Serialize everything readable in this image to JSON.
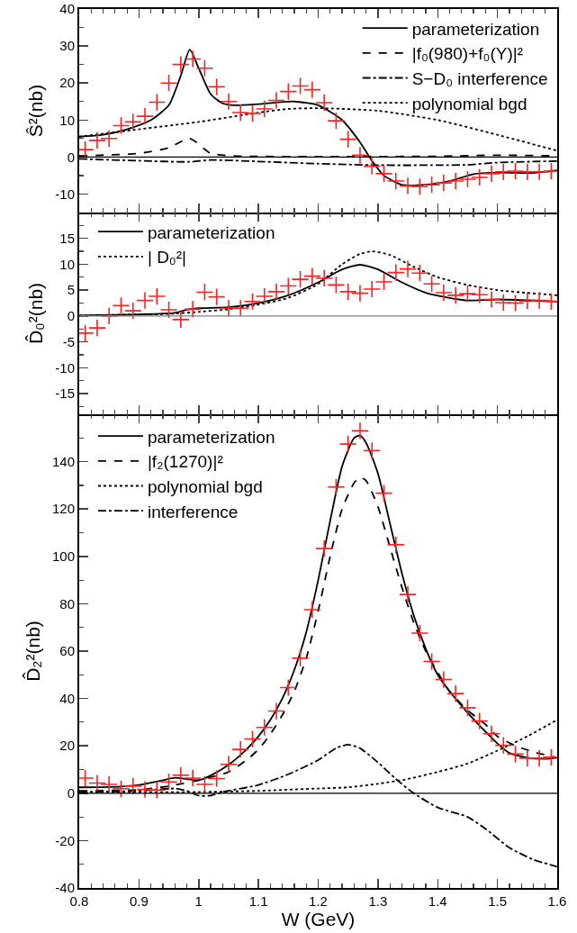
{
  "chart_data": [
    {
      "type": "line",
      "ylabel": "Ŝ²(nb)",
      "xlim": [
        0.8,
        1.6
      ],
      "xticks": [
        0.8,
        0.9,
        1,
        1.1,
        1.2,
        1.3,
        1.4,
        1.5,
        1.6
      ],
      "ylim": [
        -15,
        40
      ],
      "yticks": [
        -10,
        0,
        10,
        20,
        30,
        40
      ],
      "tick_labels": "y",
      "legend": "top right",
      "grid": false,
      "x": [
        0.81,
        0.83,
        0.85,
        0.87,
        0.89,
        0.91,
        0.93,
        0.95,
        0.97,
        0.99,
        1.01,
        1.03,
        1.05,
        1.07,
        1.09,
        1.11,
        1.13,
        1.15,
        1.17,
        1.19,
        1.21,
        1.23,
        1.25,
        1.27,
        1.29,
        1.31,
        1.33,
        1.35,
        1.37,
        1.39,
        1.41,
        1.43,
        1.45,
        1.47,
        1.49,
        1.51,
        1.53,
        1.55,
        1.57,
        1.59
      ],
      "ref_lines": [
        {
          "axis": "y",
          "value": 0,
          "color": "#000000"
        }
      ],
      "series": [
        {
          "type": "scatter",
          "marker": "cross",
          "color": "#ff2020",
          "values": [
            2,
            4.5,
            5,
            8.5,
            9.5,
            11,
            14.8,
            20,
            25,
            26.5,
            24,
            19,
            15,
            12,
            11.8,
            13,
            15.3,
            17.7,
            19.2,
            18.2,
            14.7,
            9.8,
            4.8,
            0.5,
            -2.5,
            -4.5,
            -6.5,
            -7.8,
            -8,
            -7.5,
            -7,
            -6.5,
            -6,
            -5.5,
            -4.5,
            -4,
            -3.8,
            -4,
            -4,
            -3.8
          ]
        },
        {
          "name": "parameterization",
          "line_style": "solid",
          "color": "#000000",
          "x": [
            0.8,
            0.84,
            0.88,
            0.92,
            0.95,
            0.97,
            0.985,
            1.0,
            1.02,
            1.04,
            1.06,
            1.1,
            1.16,
            1.2,
            1.24,
            1.27,
            1.29,
            1.31,
            1.34,
            1.38,
            1.42,
            1.46,
            1.5,
            1.56,
            1.6
          ],
          "values": [
            5.5,
            6,
            7.5,
            10,
            14,
            22,
            29,
            24,
            17,
            14.5,
            14,
            14.3,
            15,
            14,
            10,
            4,
            -1,
            -5,
            -7.5,
            -7.5,
            -6.5,
            -4.6,
            -4.2,
            -4.3,
            -3.6
          ]
        },
        {
          "name": "|f₀(980)+f₀(Y)|²",
          "line_style": "dashed",
          "color": "#000000",
          "x": [
            0.8,
            0.9,
            0.95,
            0.985,
            1.02,
            1.06,
            1.2,
            1.4,
            1.5,
            1.6
          ],
          "values": [
            0.3,
            1,
            2.5,
            5,
            1,
            0.3,
            0.1,
            0.2,
            0.5,
            0.3
          ]
        },
        {
          "name": "S−D₀ interference",
          "line_style": "dashdot",
          "color": "#000000",
          "x": [
            0.8,
            0.9,
            0.985,
            1.02,
            1.1,
            1.2,
            1.3,
            1.4,
            1.45,
            1.5,
            1.6
          ],
          "values": [
            -0.5,
            -1,
            -1.3,
            -0.8,
            -1.2,
            -1.8,
            -2.2,
            -2.2,
            -2.1,
            -1.5,
            -1.1
          ]
        },
        {
          "name": "polynomial bgd",
          "line_style": "dotted",
          "color": "#000000",
          "x": [
            0.8,
            0.9,
            1.0,
            1.1,
            1.15,
            1.2,
            1.3,
            1.4,
            1.5,
            1.6
          ],
          "values": [
            5.5,
            7.5,
            9.5,
            12,
            13,
            13.2,
            12.5,
            10,
            6,
            1.7
          ]
        }
      ]
    },
    {
      "type": "line",
      "ylabel": "D̂₀²(nb)",
      "xlim": [
        0.8,
        1.6
      ],
      "xticks": [
        0.8,
        0.9,
        1,
        1.1,
        1.2,
        1.3,
        1.4,
        1.5,
        1.6
      ],
      "ylim": [
        -19,
        20
      ],
      "yticks": [
        -15,
        -10,
        -5,
        0,
        5,
        10,
        15
      ],
      "tick_labels": "y",
      "legend": "top left",
      "grid": false,
      "x": [
        0.81,
        0.83,
        0.85,
        0.87,
        0.89,
        0.91,
        0.93,
        0.95,
        0.97,
        0.99,
        1.01,
        1.03,
        1.05,
        1.07,
        1.09,
        1.11,
        1.13,
        1.15,
        1.17,
        1.19,
        1.21,
        1.23,
        1.25,
        1.27,
        1.29,
        1.31,
        1.33,
        1.35,
        1.37,
        1.39,
        1.41,
        1.43,
        1.45,
        1.47,
        1.49,
        1.51,
        1.53,
        1.55,
        1.57,
        1.59
      ],
      "ref_lines": [
        {
          "axis": "y",
          "value": 0,
          "color": "#808080"
        }
      ],
      "series": [
        {
          "type": "scatter",
          "marker": "cross",
          "color": "#ff2020",
          "values": [
            -3.3,
            -2.3,
            0,
            2,
            1,
            3,
            3.8,
            1.2,
            -0.7,
            1.3,
            4.6,
            3.7,
            1.5,
            1.5,
            2.8,
            3.8,
            4.7,
            5.8,
            7.1,
            7.7,
            7.3,
            6,
            4.7,
            4.4,
            5.2,
            6.6,
            8.4,
            9.1,
            8.3,
            6.2,
            4.5,
            4,
            4.3,
            4.1,
            3.2,
            2.6,
            2.5,
            2.9,
            3,
            2.8
          ]
        },
        {
          "name": "parameterization",
          "line_style": "solid",
          "color": "#000000",
          "x": [
            0.8,
            0.9,
            0.96,
            0.98,
            1.0,
            1.05,
            1.1,
            1.15,
            1.2,
            1.24,
            1.27,
            1.3,
            1.34,
            1.38,
            1.42,
            1.45,
            1.5,
            1.6
          ],
          "values": [
            0.1,
            0.3,
            0.6,
            1.2,
            1.5,
            1.7,
            2.5,
            4,
            6.5,
            9,
            9.9,
            9,
            6.5,
            4.5,
            3.5,
            3,
            3.2,
            2.8
          ]
        },
        {
          "name": "| D₀²|",
          "line_style": "dotted",
          "color": "#000000",
          "x": [
            0.8,
            0.9,
            0.95,
            1.0,
            1.05,
            1.1,
            1.15,
            1.2,
            1.24,
            1.27,
            1.29,
            1.32,
            1.36,
            1.4,
            1.45,
            1.5,
            1.6
          ],
          "values": [
            0.1,
            0.3,
            0.4,
            0.8,
            1.3,
            2.2,
            3.5,
            6.2,
            10,
            12,
            12.5,
            11.8,
            9.5,
            7.5,
            6,
            5,
            4
          ]
        }
      ]
    },
    {
      "type": "line",
      "xlabel": "W (GeV)",
      "ylabel": "D̂₂²(nb)",
      "xlim": [
        0.8,
        1.6
      ],
      "xticks": [
        0.8,
        0.9,
        1,
        1.1,
        1.2,
        1.3,
        1.4,
        1.5,
        1.6
      ],
      "ylim": [
        -40,
        160
      ],
      "yticks": [
        -40,
        -20,
        0,
        20,
        40,
        60,
        80,
        100,
        120,
        140
      ],
      "legend": "top left",
      "grid": false,
      "x": [
        0.81,
        0.83,
        0.85,
        0.87,
        0.89,
        0.91,
        0.93,
        0.95,
        0.97,
        0.99,
        1.01,
        1.03,
        1.05,
        1.07,
        1.09,
        1.11,
        1.13,
        1.15,
        1.17,
        1.19,
        1.21,
        1.23,
        1.25,
        1.27,
        1.29,
        1.31,
        1.33,
        1.35,
        1.37,
        1.39,
        1.41,
        1.43,
        1.45,
        1.47,
        1.49,
        1.51,
        1.53,
        1.55,
        1.57,
        1.59
      ],
      "ref_lines": [
        {
          "axis": "y",
          "value": 0,
          "color": "#000000"
        }
      ],
      "series": [
        {
          "type": "scatter",
          "marker": "cross",
          "color": "#ff2020",
          "values": [
            6.4,
            4.3,
            3.7,
            1.9,
            3,
            1.6,
            1.3,
            4.8,
            7.6,
            6.4,
            3.7,
            6.2,
            12.2,
            18.5,
            22.9,
            27.8,
            34.7,
            44.6,
            57,
            77.5,
            103.3,
            129.3,
            147.4,
            153,
            144.7,
            126.7,
            104.9,
            83.9,
            67.6,
            55.6,
            48,
            42.1,
            36.1,
            30.5,
            25.1,
            20.2,
            16.5,
            14.8,
            14.8,
            15.2
          ]
        },
        {
          "name": "parameterization",
          "line_style": "solid",
          "color": "#000000",
          "x": [
            0.8,
            0.85,
            0.9,
            0.94,
            0.96,
            0.98,
            1.0,
            1.02,
            1.05,
            1.08,
            1.1,
            1.12,
            1.14,
            1.16,
            1.18,
            1.2,
            1.22,
            1.24,
            1.26,
            1.27,
            1.28,
            1.3,
            1.32,
            1.34,
            1.36,
            1.38,
            1.4,
            1.42,
            1.45,
            1.48,
            1.5,
            1.52,
            1.55,
            1.58,
            1.6
          ],
          "values": [
            2.5,
            2.6,
            3.5,
            5.5,
            6.5,
            6,
            5.5,
            7.5,
            12,
            18.5,
            24,
            31,
            40,
            52,
            68,
            90,
            115,
            138,
            150,
            151,
            148,
            135,
            114,
            93,
            75,
            61,
            50,
            43,
            34,
            26,
            21,
            17,
            15,
            14.5,
            15
          ]
        },
        {
          "name": "|f₂(1270)|²",
          "line_style": "dashed",
          "color": "#000000",
          "x": [
            0.8,
            0.9,
            0.95,
            1.0,
            1.05,
            1.08,
            1.1,
            1.12,
            1.14,
            1.16,
            1.18,
            1.2,
            1.22,
            1.24,
            1.26,
            1.27,
            1.28,
            1.3,
            1.32,
            1.34,
            1.36,
            1.38,
            1.4,
            1.42,
            1.45,
            1.48,
            1.5,
            1.53,
            1.56,
            1.6
          ],
          "values": [
            1,
            1.5,
            3,
            5.5,
            9,
            14,
            18.5,
            25,
            33,
            43,
            57,
            77,
            100,
            120,
            131,
            133.5,
            132,
            121,
            104,
            87,
            72,
            60,
            51,
            43,
            35,
            29,
            24,
            20,
            17.5,
            15
          ]
        },
        {
          "name": "polynomial bgd",
          "line_style": "dotted",
          "color": "#000000",
          "x": [
            0.8,
            0.9,
            1.0,
            1.1,
            1.2,
            1.25,
            1.3,
            1.35,
            1.4,
            1.45,
            1.5,
            1.55,
            1.6
          ],
          "values": [
            0.5,
            0.4,
            0.5,
            1,
            2,
            2.5,
            4,
            6,
            9,
            12.5,
            18,
            24,
            31
          ]
        },
        {
          "name": "interference",
          "line_style": "dashdot",
          "color": "#000000",
          "x": [
            0.8,
            0.9,
            0.96,
            0.98,
            1.0,
            1.02,
            1.04,
            1.1,
            1.15,
            1.2,
            1.23,
            1.25,
            1.27,
            1.3,
            1.33,
            1.36,
            1.4,
            1.45,
            1.48,
            1.52,
            1.56,
            1.6
          ],
          "values": [
            0.5,
            1,
            2,
            1,
            -1,
            -1,
            0.5,
            3.5,
            8,
            14,
            19,
            20.5,
            19,
            13,
            6,
            0,
            -6,
            -10,
            -15,
            -23,
            -28,
            -31
          ]
        }
      ]
    }
  ]
}
